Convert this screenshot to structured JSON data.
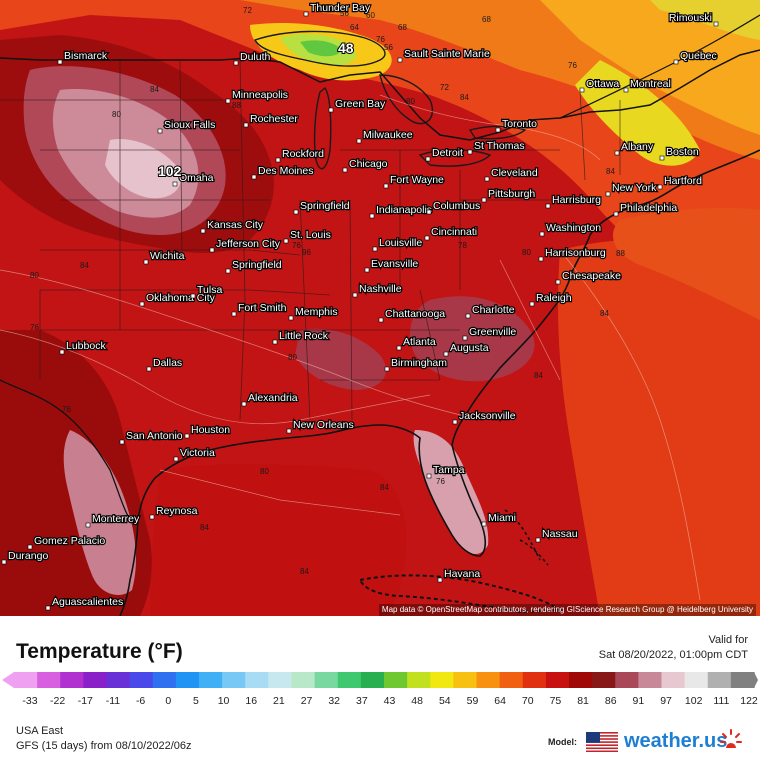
{
  "map": {
    "attribution": "Map data © OpenStreetMap contributors, rendering GIScience Research Group @ Heidelberg University",
    "extreme_labels": [
      "102",
      "48"
    ],
    "isotherm_labels": [
      "72",
      "56",
      "60",
      "68",
      "64",
      "76",
      "56",
      "68",
      "72",
      "76",
      "78",
      "88",
      "84",
      "80",
      "92",
      "96",
      "80",
      "84",
      "88",
      "80",
      "76",
      "84",
      "76",
      "76",
      "80",
      "76",
      "84",
      "80",
      "84",
      "84",
      "84",
      "84",
      "80",
      "84"
    ],
    "cities": [
      "Bismarck",
      "Duluth",
      "Thunder Bay",
      "Sault Sainte Marie",
      "Rimouski",
      "Quebec",
      "Ottawa",
      "Montreal",
      "Minneapolis",
      "Green Bay",
      "Rochester",
      "Sioux Falls",
      "Milwaukee",
      "Toronto",
      "St Thomas",
      "Albany",
      "Boston",
      "Rockford",
      "Chicago",
      "Detroit",
      "Omaha",
      "Des Moines",
      "Cleveland",
      "Fort Wayne",
      "New York",
      "Hartford",
      "Pittsburgh",
      "Harrisburg",
      "Philadelphia",
      "Springfield",
      "Indianapolis",
      "Columbus",
      "Kansas City",
      "Jefferson City",
      "St. Louis",
      "Cincinnati",
      "Washington",
      "Louisville",
      "Harrisonburg",
      "Wichita",
      "Springfield",
      "Evansville",
      "Chesapeake",
      "Oklahoma City",
      "Tulsa",
      "Nashville",
      "Raleigh",
      "Fort Smith",
      "Memphis",
      "Chattanooga",
      "Charlotte",
      "Little Rock",
      "Greenville",
      "Lubbock",
      "Atlanta",
      "Augusta",
      "Dallas",
      "Birmingham",
      "Alexandria",
      "Jacksonville",
      "San Antonio",
      "Houston",
      "New Orleans",
      "Victoria",
      "Tampa",
      "Monterrey",
      "Reynosa",
      "Miami",
      "Gomez Palacio",
      "Durango",
      "Nassau",
      "Havana",
      "Aguascalientes"
    ]
  },
  "legend": {
    "title": "Temperature (°F)",
    "valid_label": "Valid for",
    "valid_time": "Sat 08/20/2022, 01:00pm CDT",
    "ticks": [
      "-33",
      "-22",
      "-17",
      "-11",
      "-6",
      "0",
      "5",
      "10",
      "16",
      "21",
      "27",
      "32",
      "37",
      "43",
      "48",
      "54",
      "59",
      "64",
      "70",
      "75",
      "81",
      "86",
      "91",
      "97",
      "102",
      "111",
      "122"
    ],
    "colors": [
      "#f0a0f0",
      "#d860e0",
      "#b030d0",
      "#8a20c8",
      "#6a30d8",
      "#4a48e8",
      "#2f70f0",
      "#1f94f5",
      "#3fb0f5",
      "#78c8f5",
      "#a8dcf5",
      "#c8e8f0",
      "#b8e8c8",
      "#78d8a0",
      "#40c870",
      "#28b050",
      "#70c830",
      "#c0e020",
      "#f0e810",
      "#f8c010",
      "#f89010",
      "#f06010",
      "#e03010",
      "#c81010",
      "#a00808",
      "#881818",
      "#a84858",
      "#c88898",
      "#e8c8d0",
      "#e8e8e8",
      "#b0b0b0",
      "#808080"
    ],
    "region": "USA East",
    "model_run": "GFS (15 days) from  08/10/2022/06z",
    "model_label": "Model:",
    "brand_name": "weather.",
    "brand_tld": "us"
  }
}
